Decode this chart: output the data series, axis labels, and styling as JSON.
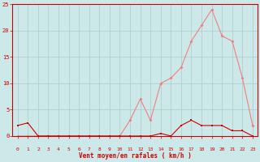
{
  "hours": [
    0,
    1,
    2,
    3,
    4,
    5,
    6,
    7,
    8,
    9,
    10,
    11,
    12,
    13,
    14,
    15,
    16,
    17,
    18,
    19,
    20,
    21,
    22,
    23
  ],
  "wind_avg": [
    2,
    2.5,
    0,
    0,
    0,
    0,
    0,
    0,
    0,
    0,
    0,
    0,
    0,
    0,
    0.5,
    0,
    2,
    3,
    2,
    2,
    2,
    1,
    1,
    0
  ],
  "wind_gust": [
    0,
    0,
    0,
    0,
    0,
    0,
    0,
    0,
    0,
    0,
    0,
    3,
    7,
    3,
    10,
    11,
    13,
    18,
    21,
    24,
    19,
    18,
    11,
    2
  ],
  "line_color_gust": "#f08080",
  "line_color_avg": "#cc0000",
  "marker_color_gust": "#f08080",
  "marker_color_avg": "#cc0000",
  "bg_color": "#cce8e8",
  "grid_color": "#aacccc",
  "xlabel": "Vent moyen/en rafales ( km/h )",
  "xlabel_color": "#cc0000",
  "tick_color": "#cc0000",
  "spine_color": "#cc0000",
  "ylim": [
    0,
    25
  ],
  "xlim": [
    -0.5,
    23.5
  ],
  "yticks": [
    0,
    5,
    10,
    15,
    20,
    25
  ]
}
